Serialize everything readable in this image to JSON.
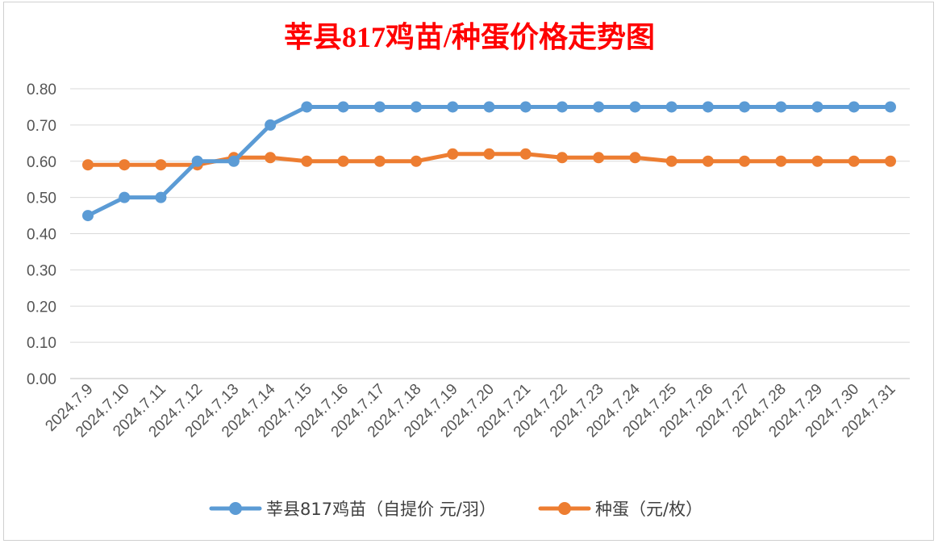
{
  "chart_data": {
    "type": "line",
    "title": "莘县817鸡苗/种蛋价格走势图",
    "categories": [
      "2024.7.9",
      "2024.7.10",
      "2024.7.11",
      "2024.7.12",
      "2024.7.13",
      "2024.7.14",
      "2024.7.15",
      "2024.7.16",
      "2024.7.17",
      "2024.7.18",
      "2024.7.19",
      "2024.7.20",
      "2024.7.21",
      "2024.7.22",
      "2024.7.23",
      "2024.7.24",
      "2024.7.25",
      "2024.7.26",
      "2024.7.27",
      "2024.7.28",
      "2024.7.29",
      "2024.7.30",
      "2024.7.31"
    ],
    "series": [
      {
        "name": "莘县817鸡苗（自提价 元/羽）",
        "color": "#5b9bd5",
        "values": [
          0.45,
          0.5,
          0.5,
          0.6,
          0.6,
          0.7,
          0.75,
          0.75,
          0.75,
          0.75,
          0.75,
          0.75,
          0.75,
          0.75,
          0.75,
          0.75,
          0.75,
          0.75,
          0.75,
          0.75,
          0.75,
          0.75,
          0.75
        ]
      },
      {
        "name": "种蛋（元/枚）",
        "color": "#ed7d31",
        "values": [
          0.59,
          0.59,
          0.59,
          0.59,
          0.61,
          0.61,
          0.6,
          0.6,
          0.6,
          0.6,
          0.62,
          0.62,
          0.62,
          0.61,
          0.61,
          0.61,
          0.6,
          0.6,
          0.6,
          0.6,
          0.6,
          0.6,
          0.6
        ]
      }
    ],
    "yticks": [
      "0.00",
      "0.10",
      "0.20",
      "0.30",
      "0.40",
      "0.50",
      "0.60",
      "0.70",
      "0.80"
    ],
    "ylim": [
      0,
      0.8
    ],
    "grid": true,
    "legend": "bottom",
    "title_color": "#ff0000"
  }
}
